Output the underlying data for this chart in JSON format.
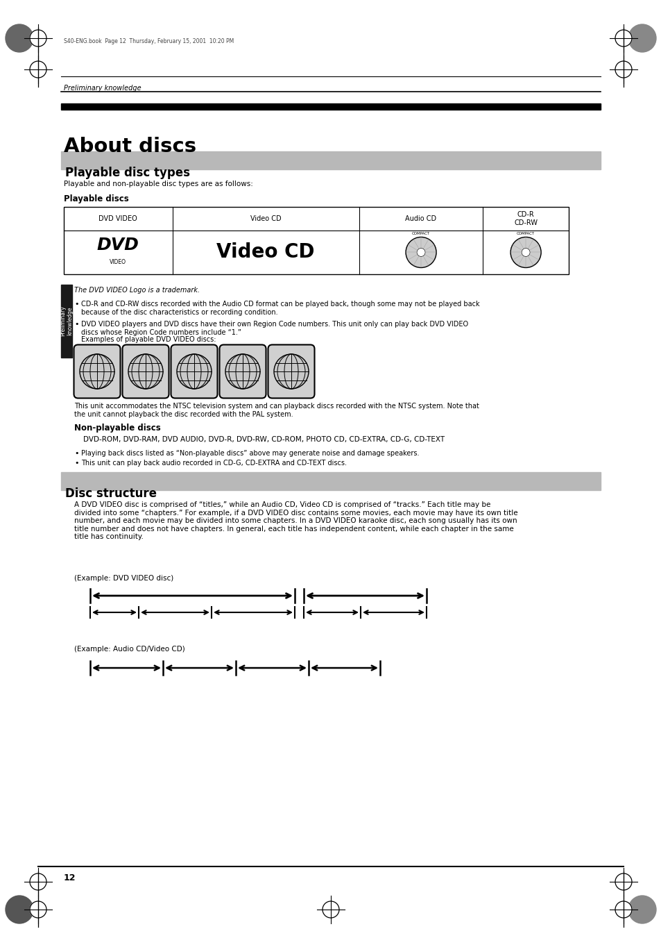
{
  "page_bg": "#ffffff",
  "text_color": "#000000",
  "header_bar_color": "#000000",
  "section_bg_color": "#b8b8b8",
  "sidebar_bg_color": "#1a1a1a",
  "sidebar_text": "Preliminary\nknowledge",
  "header_line_text": "Preliminary knowledge",
  "file_info": "S40-ENG.book  Page 12  Thursday, February 15, 2001  10:20 PM",
  "title": "About discs",
  "section1_title": "Playable disc types",
  "section2_title": "Disc structure",
  "intro_text": "Playable and non-playable disc types are as follows:",
  "playable_discs_header": "Playable discs",
  "nonplayable_discs_header": "Non-playable discs",
  "nonplayable_list": "    DVD-ROM, DVD-RAM, DVD AUDIO, DVD-R, DVD-RW, CD-ROM, PHOTO CD, CD-EXTRA, CD-G, CD-TEXT",
  "trademark_note": "The DVD VIDEO Logo is a trademark.",
  "table_headers": [
    "DVD VIDEO",
    "Video CD",
    "Audio CD",
    "CD-R\nCD-RW"
  ],
  "bullet1": "CD-R and CD-RW discs recorded with the Audio CD format can be played back, though some may not be played back\nbecause of the disc characteristics or recording condition.",
  "bullet2": "DVD VIDEO players and DVD discs have their own Region Code numbers. This unit only can play back DVD VIDEO\ndiscs whose Region Code numbers include “1.”",
  "bullet2b": "Examples of playable DVD VIDEO discs:",
  "bullet3": "Playing back discs listed as “Non-playable discs” above may generate noise and damage speakers.",
  "bullet4": "This unit can play back audio recorded in CD-G, CD-EXTRA and CD-TEXT discs.",
  "ntsc_note": "This unit accommodates the NTSC television system and can playback discs recorded with the NTSC system. Note that\nthe unit cannot playback the disc recorded with the PAL system.",
  "disc_structure_text": "A DVD VIDEO disc is comprised of “titles,” while an Audio CD, Video CD is comprised of “tracks.” Each title may be\ndivided into some “chapters.” For example, if a DVD VIDEO disc contains some movies, each movie may have its own title\nnumber, and each movie may be divided into some chapters. In a DVD VIDEO karaoke disc, each song usually has its own\ntitle number and does not have chapters. In general, each title has independent content, while each chapter in the same\ntitle has continuity.",
  "example1_label": "(Example: DVD VIDEO disc)",
  "example2_label": "(Example: Audio CD/Video CD)",
  "page_number": "12"
}
